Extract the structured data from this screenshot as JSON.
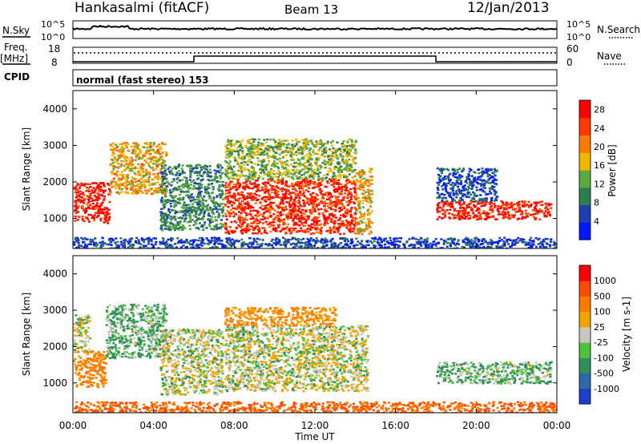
{
  "header": {
    "station": "Hankasalmi (fitACF)",
    "beam": "Beam 13",
    "date": "12/Jan/2013"
  },
  "noise_panel": {
    "left_label": "N.Sky",
    "right_label": "N.Search",
    "left_ticks": [
      "10^5",
      "10^0"
    ],
    "right_ticks": [
      "10^5",
      "10^0"
    ]
  },
  "freq_panel": {
    "left_label_line1": "Freq.",
    "left_label_line2": "[MHz]",
    "right_label": "Nave",
    "left_ticks": [
      "18",
      "8"
    ],
    "right_ticks": [
      "60",
      "0"
    ]
  },
  "cpid_panel": {
    "label": "CPID",
    "text": "normal (fast stereo) 153"
  },
  "x_axis": {
    "label": "Time UT",
    "ticks": [
      "00:00",
      "04:00",
      "08:00",
      "12:00",
      "16:00",
      "20:00",
      "00:00"
    ]
  },
  "colors": {
    "power_scale": [
      "#0019ff",
      "#1f3fb3",
      "#2e7f4f",
      "#5aaa3c",
      "#f2b500",
      "#ff7a00",
      "#ff3a00",
      "#ff0000"
    ],
    "velocity_scale": [
      "#1a3fcc",
      "#2f6aa8",
      "#2e8f5a",
      "#4ec23c",
      "#c8c8c0",
      "#f2a500",
      "#ff7a00",
      "#ff4a00",
      "#ff0000"
    ]
  },
  "chart_data": [
    {
      "type": "heatmap",
      "title": "",
      "xlabel": "Time UT",
      "ylabel": "Slant Range [km]",
      "xlim": [
        0,
        24
      ],
      "ylim": [
        180,
        4500
      ],
      "y_ticks": [
        "1000",
        "2000",
        "3000",
        "4000"
      ],
      "colorbar": {
        "label": "Power [dB]",
        "ticks": [
          "4",
          "8",
          "12",
          "16",
          "20",
          "24",
          "28"
        ],
        "range": [
          0,
          30
        ]
      },
      "regions": [
        {
          "t0": 0.0,
          "t1": 1.8,
          "r0": 900,
          "r1": 2000,
          "value": 27
        },
        {
          "t0": 1.8,
          "t1": 4.6,
          "r0": 1700,
          "r1": 3100,
          "value": 18
        },
        {
          "t0": 4.3,
          "t1": 7.4,
          "r0": 700,
          "r1": 2500,
          "value": 10
        },
        {
          "t0": 7.5,
          "t1": 14.0,
          "r0": 600,
          "r1": 2100,
          "value": 26
        },
        {
          "t0": 7.5,
          "t1": 14.0,
          "r0": 2100,
          "r1": 3200,
          "value": 14
        },
        {
          "t0": 14.0,
          "t1": 14.8,
          "r0": 600,
          "r1": 2400,
          "value": 18
        },
        {
          "t0": 18.0,
          "t1": 23.7,
          "r0": 1000,
          "r1": 1500,
          "value": 27
        },
        {
          "t0": 18.0,
          "t1": 21.0,
          "r0": 1500,
          "r1": 2400,
          "value": 6
        },
        {
          "t0": 0.0,
          "t1": 24.0,
          "r0": 180,
          "r1": 500,
          "value": 5
        }
      ]
    },
    {
      "type": "heatmap",
      "title": "",
      "xlabel": "Time UT",
      "ylabel": "Slant Range [km]",
      "xlim": [
        0,
        24
      ],
      "ylim": [
        180,
        4500
      ],
      "y_ticks": [
        "1000",
        "2000",
        "3000",
        "4000"
      ],
      "colorbar": {
        "label": "Velocity [m s-1]",
        "ticks": [
          "1000",
          "500",
          "100",
          "25",
          "-25",
          "-100",
          "-500",
          "-1000"
        ],
        "range": [
          -1000,
          1000
        ]
      },
      "regions": [
        {
          "t0": 0.0,
          "t1": 1.6,
          "r0": 900,
          "r1": 1900,
          "value": -150
        },
        {
          "t0": 0.0,
          "t1": 0.8,
          "r0": 1900,
          "r1": 2900,
          "value": 0
        },
        {
          "t0": 1.6,
          "t1": 4.6,
          "r0": 1700,
          "r1": 3200,
          "value": 60
        },
        {
          "t0": 4.3,
          "t1": 7.4,
          "r0": 700,
          "r1": 2500,
          "value": 0
        },
        {
          "t0": 7.5,
          "t1": 14.6,
          "r0": 800,
          "r1": 2600,
          "value": 0
        },
        {
          "t0": 7.5,
          "t1": 13.0,
          "r0": 2600,
          "r1": 3100,
          "value": -120
        },
        {
          "t0": 18.0,
          "t1": 23.7,
          "r0": 1000,
          "r1": 1600,
          "value": 60
        },
        {
          "t0": 0.0,
          "t1": 24.0,
          "r0": 180,
          "r1": 500,
          "value": -300
        }
      ]
    }
  ]
}
